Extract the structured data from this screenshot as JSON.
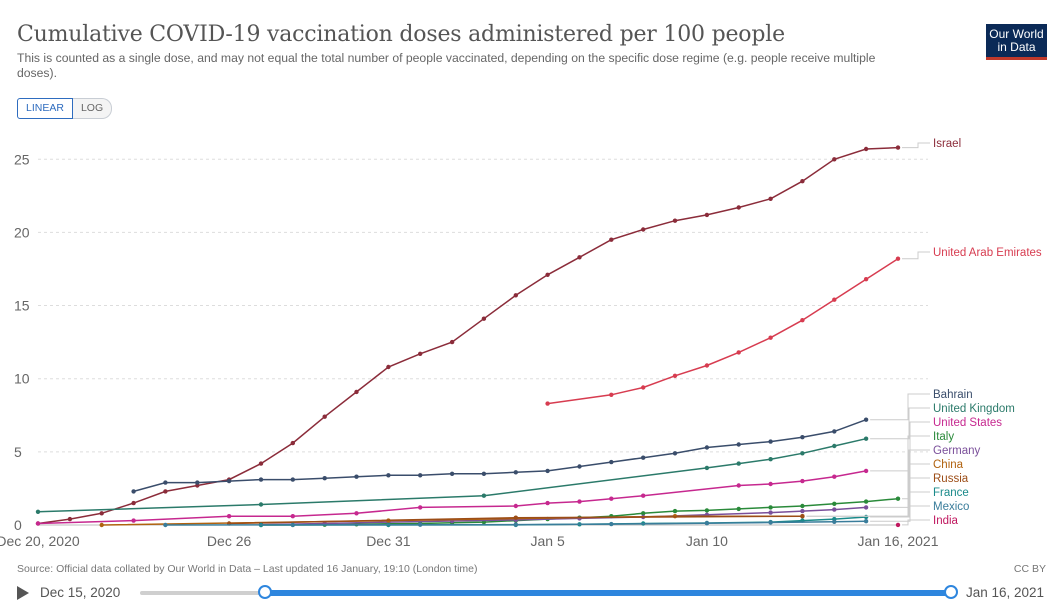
{
  "header": {
    "title": "Cumulative COVID-19 vaccination doses administered per 100 people",
    "subtitle": "This is counted as a single dose, and may not equal the total number of people vaccinated, depending on the specific dose regime (e.g. people receive multiple doses).",
    "logo_line1": "Our World",
    "logo_line2": "in Data"
  },
  "scale_toggle": {
    "linear_label": "LINEAR",
    "log_label": "LOG",
    "selected": "LINEAR"
  },
  "footer": {
    "source": "Source: Official data collated by Our World in Data – Last updated 16 January, 19:10 (London time)",
    "license": "CC BY"
  },
  "timeline": {
    "start_label": "Dec 15, 2020",
    "end_label": "Jan 16, 2021"
  },
  "chart_data": {
    "type": "line",
    "xlim": [
      "2020-12-20",
      "2021-01-16"
    ],
    "ylim": [
      0,
      27
    ],
    "yticks": [
      0,
      5,
      10,
      15,
      20,
      25
    ],
    "xticks": [
      {
        "date": "2020-12-20",
        "label": "Dec 20, 2020"
      },
      {
        "date": "2020-12-26",
        "label": "Dec 26"
      },
      {
        "date": "2020-12-31",
        "label": "Dec 31"
      },
      {
        "date": "2021-01-05",
        "label": "Jan 5"
      },
      {
        "date": "2021-01-10",
        "label": "Jan 10"
      },
      {
        "date": "2021-01-16",
        "label": "Jan 16, 2021"
      }
    ],
    "grid": true,
    "series": [
      {
        "name": "Israel",
        "color": "#8b2c3a",
        "x": [
          "2020-12-20",
          "2020-12-21",
          "2020-12-22",
          "2020-12-23",
          "2020-12-24",
          "2020-12-25",
          "2020-12-26",
          "2020-12-27",
          "2020-12-28",
          "2020-12-29",
          "2020-12-30",
          "2020-12-31",
          "2021-01-01",
          "2021-01-02",
          "2021-01-03",
          "2021-01-04",
          "2021-01-05",
          "2021-01-06",
          "2021-01-07",
          "2021-01-08",
          "2021-01-09",
          "2021-01-10",
          "2021-01-11",
          "2021-01-12",
          "2021-01-13",
          "2021-01-14",
          "2021-01-15",
          "2021-01-16"
        ],
        "y": [
          0.1,
          0.4,
          0.8,
          1.5,
          2.3,
          2.7,
          3.1,
          4.2,
          5.6,
          7.4,
          9.1,
          10.8,
          11.7,
          12.5,
          14.1,
          15.7,
          17.1,
          18.3,
          19.5,
          20.2,
          20.8,
          21.2,
          21.7,
          22.3,
          23.5,
          25.0,
          25.7,
          25.8
        ]
      },
      {
        "name": "United Arab Emirates",
        "color": "#d73c50",
        "x": [
          "2021-01-05",
          "2021-01-07",
          "2021-01-08",
          "2021-01-09",
          "2021-01-10",
          "2021-01-11",
          "2021-01-12",
          "2021-01-13",
          "2021-01-14",
          "2021-01-15",
          "2021-01-16"
        ],
        "y": [
          8.3,
          8.9,
          9.4,
          10.2,
          10.9,
          11.8,
          12.8,
          14.0,
          15.4,
          16.8,
          18.2
        ]
      },
      {
        "name": "Bahrain",
        "color": "#3a4d6b",
        "x": [
          "2020-12-23",
          "2020-12-24",
          "2020-12-25",
          "2020-12-26",
          "2020-12-27",
          "2020-12-28",
          "2020-12-29",
          "2020-12-30",
          "2020-12-31",
          "2021-01-01",
          "2021-01-02",
          "2021-01-03",
          "2021-01-04",
          "2021-01-05",
          "2021-01-06",
          "2021-01-07",
          "2021-01-08",
          "2021-01-09",
          "2021-01-10",
          "2021-01-11",
          "2021-01-12",
          "2021-01-13",
          "2021-01-14",
          "2021-01-15"
        ],
        "y": [
          2.3,
          2.9,
          2.9,
          3.0,
          3.1,
          3.1,
          3.2,
          3.3,
          3.4,
          3.4,
          3.5,
          3.5,
          3.6,
          3.7,
          4.0,
          4.3,
          4.6,
          4.9,
          5.3,
          5.5,
          5.7,
          6.0,
          6.4,
          7.2
        ]
      },
      {
        "name": "United Kingdom",
        "color": "#2b7a6a",
        "x": [
          "2020-12-20",
          "2020-12-27",
          "2021-01-03",
          "2021-01-10",
          "2021-01-11",
          "2021-01-12",
          "2021-01-13",
          "2021-01-14",
          "2021-01-15"
        ],
        "y": [
          0.9,
          1.4,
          2.0,
          3.9,
          4.2,
          4.5,
          4.9,
          5.4,
          5.9
        ]
      },
      {
        "name": "United States",
        "color": "#c6288f",
        "x": [
          "2020-12-20",
          "2020-12-23",
          "2020-12-26",
          "2020-12-28",
          "2020-12-30",
          "2021-01-01",
          "2021-01-04",
          "2021-01-05",
          "2021-01-06",
          "2021-01-07",
          "2021-01-08",
          "2021-01-11",
          "2021-01-12",
          "2021-01-13",
          "2021-01-14",
          "2021-01-15"
        ],
        "y": [
          0.1,
          0.3,
          0.6,
          0.6,
          0.8,
          1.2,
          1.3,
          1.5,
          1.6,
          1.8,
          2.0,
          2.7,
          2.8,
          3.0,
          3.3,
          3.7
        ]
      },
      {
        "name": "Italy",
        "color": "#2a8a3a",
        "x": [
          "2020-12-27",
          "2020-12-28",
          "2020-12-29",
          "2020-12-30",
          "2020-12-31",
          "2021-01-01",
          "2021-01-02",
          "2021-01-03",
          "2021-01-04",
          "2021-01-05",
          "2021-01-06",
          "2021-01-07",
          "2021-01-08",
          "2021-01-09",
          "2021-01-10",
          "2021-01-11",
          "2021-01-12",
          "2021-01-13",
          "2021-01-14",
          "2021-01-15",
          "2021-01-16"
        ],
        "y": [
          0.0,
          0.01,
          0.02,
          0.05,
          0.08,
          0.1,
          0.15,
          0.2,
          0.3,
          0.4,
          0.5,
          0.6,
          0.8,
          0.95,
          1.0,
          1.1,
          1.2,
          1.3,
          1.45,
          1.6,
          1.8
        ]
      },
      {
        "name": "Germany",
        "color": "#7a4f9a",
        "x": [
          "2020-12-27",
          "2020-12-29",
          "2020-12-31",
          "2021-01-02",
          "2021-01-04",
          "2021-01-06",
          "2021-01-08",
          "2021-01-10",
          "2021-01-12",
          "2021-01-13",
          "2021-01-14",
          "2021-01-15"
        ],
        "y": [
          0.03,
          0.1,
          0.2,
          0.27,
          0.35,
          0.45,
          0.55,
          0.7,
          0.85,
          0.95,
          1.05,
          1.2
        ]
      },
      {
        "name": "China",
        "color": "#b0620f",
        "x": [
          "2020-12-22",
          "2020-12-31",
          "2021-01-09",
          "2021-01-13"
        ],
        "y": [
          0.0,
          0.3,
          0.6,
          0.6
        ]
      },
      {
        "name": "Russia",
        "color": "#9c4d17",
        "x": [
          "2020-12-26",
          "2021-01-04",
          "2021-01-13"
        ],
        "y": [
          0.1,
          0.5,
          0.6
        ]
      },
      {
        "name": "France",
        "color": "#1a8a8a",
        "x": [
          "2020-12-27",
          "2020-12-31",
          "2021-01-04",
          "2021-01-06",
          "2021-01-08",
          "2021-01-10",
          "2021-01-12",
          "2021-01-13",
          "2021-01-14",
          "2021-01-15"
        ],
        "y": [
          0.0,
          0.0,
          0.01,
          0.05,
          0.1,
          0.14,
          0.2,
          0.3,
          0.4,
          0.55
        ]
      },
      {
        "name": "Mexico",
        "color": "#3a7d9b",
        "x": [
          "2020-12-24",
          "2020-12-28",
          "2021-01-01",
          "2021-01-04",
          "2021-01-07",
          "2021-01-10",
          "2021-01-12",
          "2021-01-14",
          "2021-01-15"
        ],
        "y": [
          0.0,
          0.01,
          0.02,
          0.03,
          0.06,
          0.12,
          0.17,
          0.22,
          0.26
        ]
      },
      {
        "name": "India",
        "color": "#c0185f",
        "x": [
          "2021-01-16"
        ],
        "y": [
          0.01
        ]
      }
    ]
  }
}
